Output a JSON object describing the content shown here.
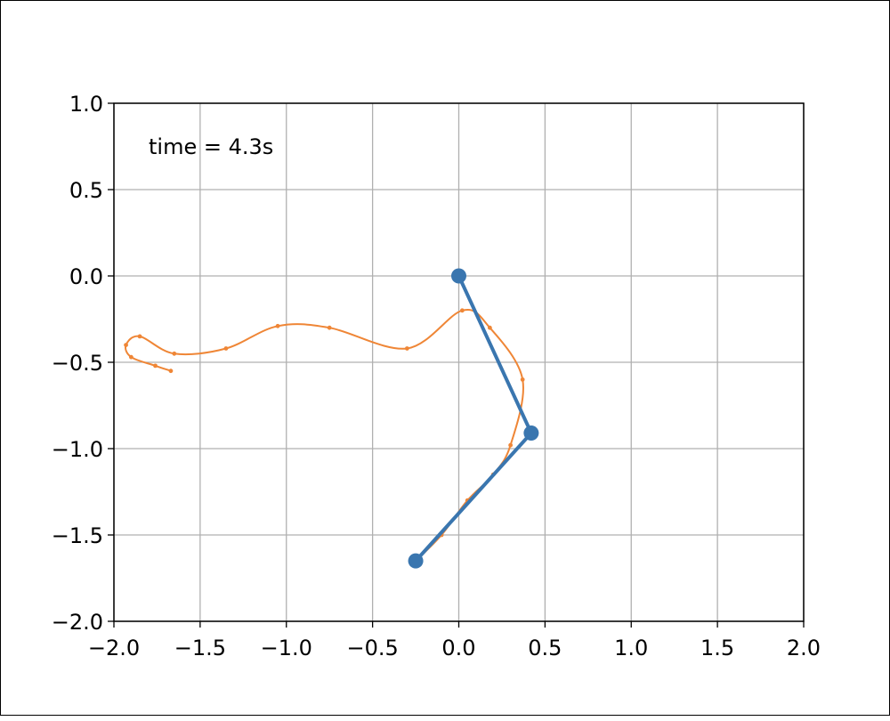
{
  "chart_data": {
    "type": "line",
    "title": "",
    "xlabel": "",
    "ylabel": "",
    "xlim": [
      -2.0,
      2.0
    ],
    "ylim": [
      -2.0,
      1.0
    ],
    "xticks": [
      -2.0,
      -1.5,
      -1.0,
      -0.5,
      0.0,
      0.5,
      1.0,
      1.5,
      2.0
    ],
    "yticks": [
      1.0,
      0.5,
      0.0,
      -0.5,
      -1.0,
      -1.5,
      -2.0
    ],
    "xtick_labels": [
      "−2.0",
      "−1.5",
      "−1.0",
      "−0.5",
      "0.0",
      "0.5",
      "1.0",
      "1.5",
      "2.0"
    ],
    "ytick_labels": [
      "1.0",
      "0.5",
      "0.0",
      "−0.5",
      "−1.0",
      "−1.5",
      "−2.0"
    ],
    "grid": true,
    "annotation": "time = 4.3s",
    "colors": {
      "pendulum": "#3a76af",
      "trace": "#ef8636",
      "grid": "#b0b0b0"
    },
    "series": [
      {
        "kind": "pendulum",
        "x": [
          0.0,
          0.42,
          -0.25
        ],
        "y": [
          0.0,
          -0.91,
          -1.65
        ]
      },
      {
        "kind": "trace",
        "x": [
          -0.25,
          -0.1,
          0.05,
          0.2,
          0.3,
          0.37,
          0.18,
          0.02,
          -0.3,
          -0.75,
          -1.05,
          -1.35,
          -1.65,
          -1.85,
          -1.93,
          -1.9,
          -1.76,
          -1.67
        ],
        "y": [
          -1.65,
          -1.5,
          -1.3,
          -1.15,
          -0.98,
          -0.6,
          -0.3,
          -0.2,
          -0.42,
          -0.3,
          -0.29,
          -0.42,
          -0.45,
          -0.35,
          -0.4,
          -0.47,
          -0.52,
          -0.55
        ]
      }
    ]
  }
}
